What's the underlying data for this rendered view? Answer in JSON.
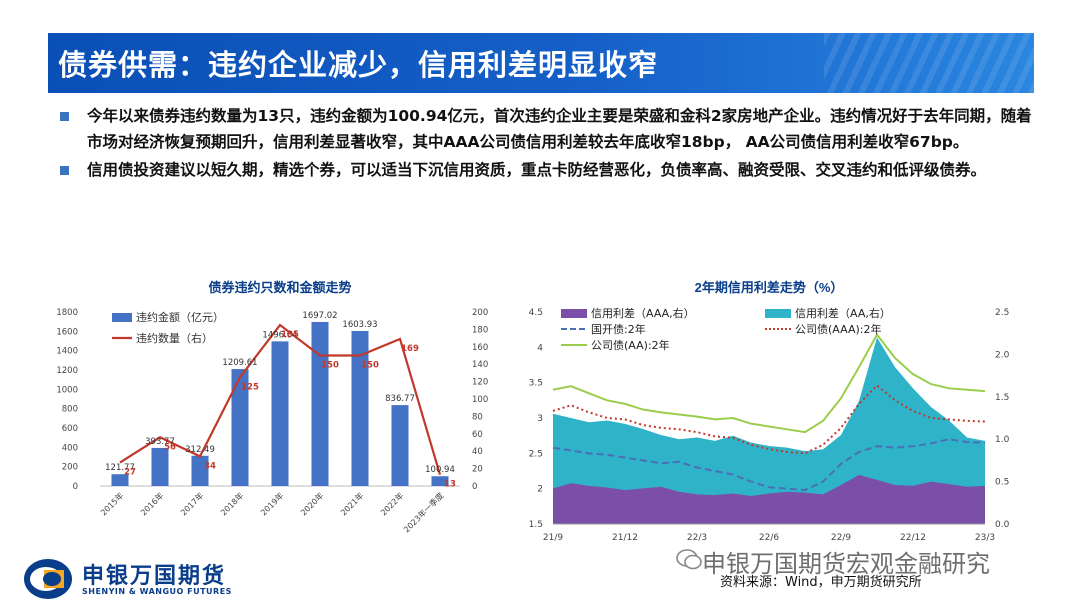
{
  "header": {
    "title": "债券供需：违约企业减少，信用利差明显收窄"
  },
  "bullets": [
    "今年以来债券违约数量为13只，违约金额为100.94亿元，首次违约企业主要是荣盛和金科2家房地产企业。违约情况好于去年同期，随着市场对经济恢复预期回升，信用利差显著收窄，其中AAA公司债信用利差较去年底收窄18bp， AA公司债信用利差收窄67bp。",
    "信用债投资建议以短久期，精选个券，可以适当下沉信用资质，重点卡防经营恶化，负债率高、融资受限、交叉违约和低评级债券。"
  ],
  "colors": {
    "title_bar": "#1560c8",
    "bar": "#4472c4",
    "line_red": "#c0392b",
    "purple": "#7b4fa8",
    "teal": "#2fb3c9",
    "blue_dash": "#4a6fb5",
    "red_dot": "#c0392b",
    "green": "#9acd4c"
  },
  "chart_data": [
    {
      "type": "bar",
      "title": "债券违约只数和金额走势",
      "categories": [
        "2015年",
        "2016年",
        "2017年",
        "2018年",
        "2019年",
        "2020年",
        "2021年",
        "2022年",
        "2023年一季度"
      ],
      "series": [
        {
          "name": "违约金额（亿元）",
          "axis": "left",
          "values": [
            121.77,
            393.77,
            312.49,
            1209.61,
            1496.04,
            1697.02,
            1603.93,
            836.77,
            100.94
          ]
        },
        {
          "name": "违约数量（右）",
          "axis": "right",
          "type": "line",
          "values": [
            27,
            56,
            34,
            125,
            185,
            150,
            150,
            169,
            13
          ]
        }
      ],
      "ylim_left": [
        0,
        1800
      ],
      "yticks_left": [
        0,
        200,
        400,
        600,
        800,
        1000,
        1200,
        1400,
        1600,
        1800
      ],
      "ylim_right": [
        0,
        200
      ],
      "yticks_right": [
        0,
        20,
        40,
        60,
        80,
        100,
        120,
        140,
        160,
        180,
        200
      ],
      "legend": "top-left",
      "grid": false
    },
    {
      "type": "area",
      "title": "2年期信用利差走势（%）",
      "x_tick_labels": [
        "21/9",
        "21/12",
        "22/3",
        "22/6",
        "22/9",
        "22/12",
        "23/3"
      ],
      "ylim_left": [
        1.5,
        4.5
      ],
      "yticks_left": [
        "1.5",
        "2",
        "2.5",
        "3",
        "3.5",
        "4",
        "4.5"
      ],
      "ylim_right": [
        0,
        2.5
      ],
      "yticks_right": [
        "0.0",
        "0.5",
        "1.0",
        "1.5",
        "2.0",
        "2.5"
      ],
      "legend": "top",
      "series": [
        {
          "name": "信用利差（AAA,右）",
          "axis": "right",
          "style": "area",
          "values": [
            0.42,
            0.48,
            0.45,
            0.43,
            0.4,
            0.42,
            0.44,
            0.38,
            0.35,
            0.34,
            0.36,
            0.33,
            0.36,
            0.38,
            0.37,
            0.35,
            0.46,
            0.58,
            0.52,
            0.46,
            0.45,
            0.5,
            0.47,
            0.44,
            0.45
          ]
        },
        {
          "name": "信用利差（AA,右）",
          "axis": "right",
          "style": "area",
          "values": [
            1.3,
            1.25,
            1.2,
            1.22,
            1.18,
            1.12,
            1.05,
            1.0,
            1.02,
            0.98,
            1.04,
            0.96,
            0.92,
            0.9,
            0.86,
            0.88,
            1.05,
            1.45,
            2.2,
            1.85,
            1.6,
            1.38,
            1.22,
            1.02,
            0.98
          ]
        },
        {
          "name": "国开债:2年",
          "axis": "left",
          "style": "dashed",
          "values": [
            2.58,
            2.54,
            2.5,
            2.48,
            2.44,
            2.4,
            2.36,
            2.38,
            2.3,
            2.25,
            2.2,
            2.1,
            2.02,
            2.0,
            1.98,
            2.1,
            2.35,
            2.52,
            2.6,
            2.58,
            2.6,
            2.64,
            2.7,
            2.66,
            2.65
          ]
        },
        {
          "name": "公司债(AAA):2年",
          "axis": "left",
          "style": "dotted",
          "values": [
            3.1,
            3.18,
            3.08,
            3.0,
            2.98,
            2.9,
            2.86,
            2.84,
            2.8,
            2.74,
            2.72,
            2.62,
            2.56,
            2.52,
            2.5,
            2.62,
            2.86,
            3.2,
            3.46,
            3.25,
            3.1,
            3.0,
            2.98,
            2.96,
            2.95
          ]
        },
        {
          "name": "公司债(AA):2年",
          "axis": "left",
          "style": "solid",
          "values": [
            3.4,
            3.45,
            3.35,
            3.25,
            3.2,
            3.12,
            3.08,
            3.05,
            3.02,
            2.98,
            3.0,
            2.92,
            2.88,
            2.84,
            2.8,
            2.96,
            3.28,
            3.72,
            4.18,
            3.85,
            3.62,
            3.48,
            3.42,
            3.4,
            3.38
          ]
        }
      ]
    }
  ],
  "footer": {
    "logo_text": "申银万国期货",
    "logo_sub": "SHENYIN & WANGUO FUTURES",
    "watermark": "申银万国期货宏观金融研究",
    "source": "资料来源：Wind，申万期货研究所"
  }
}
